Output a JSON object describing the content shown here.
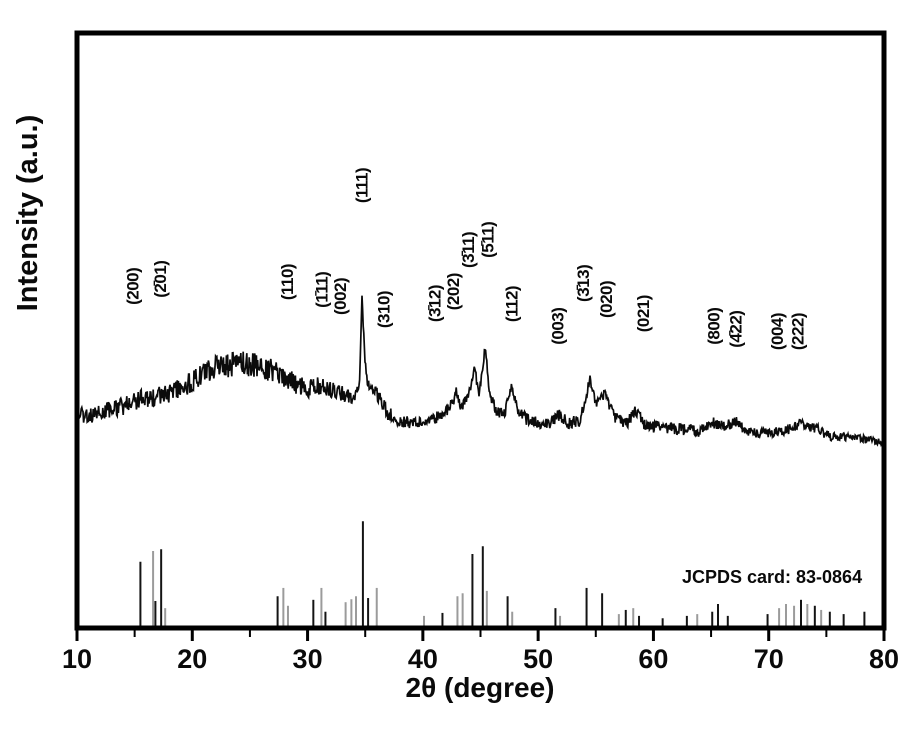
{
  "figure": {
    "y_axis_label": "Intensity (a.u.)",
    "x_axis_label": "2θ (degree)",
    "annotation": "JCPDS card: 83-0864"
  },
  "chart_data": {
    "type": "line",
    "title": "",
    "xlabel": "2θ (degree)",
    "ylabel": "Intensity (a.u.)",
    "x_range": [
      10,
      80
    ],
    "y_units": "arbitrary units, 0 = x-axis baseline, 100 = top of frame",
    "x_major_ticks": [
      10,
      20,
      30,
      40,
      50,
      60,
      70,
      80
    ],
    "x_minor_ticks": [
      15,
      25,
      35,
      45,
      55,
      65,
      75
    ],
    "grid": false,
    "legend": "none",
    "colors": {
      "trace": "#0b0b0b",
      "stick_black": "#141414",
      "stick_gray": "#9b9b9b",
      "frame": "#000000"
    },
    "series": [
      {
        "name": "measured XRD pattern (noisy trace)",
        "type": "noisy-line",
        "anchors": [
          [
            10,
            36.1,
            1.3
          ],
          [
            11,
            35.6,
            1.3
          ],
          [
            12,
            36.1,
            1.3
          ],
          [
            13,
            36.8,
            1.5
          ],
          [
            14,
            37.3,
            1.5
          ],
          [
            15,
            38.0,
            1.5
          ],
          [
            15.6,
            38.8,
            1.6
          ],
          [
            16.3,
            38.3,
            1.5
          ],
          [
            17.2,
            39.3,
            1.6
          ],
          [
            18,
            39.3,
            1.6
          ],
          [
            19,
            40.2,
            1.8
          ],
          [
            20,
            41.3,
            2.0
          ],
          [
            21,
            42.5,
            2.0
          ],
          [
            22,
            43.5,
            2.2
          ],
          [
            23,
            44.2,
            2.2
          ],
          [
            24,
            44.5,
            2.2
          ],
          [
            25,
            44.4,
            2.2
          ],
          [
            26,
            43.9,
            2.0
          ],
          [
            27,
            43.2,
            2.0
          ],
          [
            28,
            42.2,
            1.8
          ],
          [
            29,
            41.0,
            1.7
          ],
          [
            30,
            40.2,
            1.6
          ],
          [
            30.8,
            40.7,
            1.5
          ],
          [
            31.6,
            40.2,
            1.5
          ],
          [
            32.4,
            40.0,
            1.4
          ],
          [
            33.2,
            39.3,
            1.3
          ],
          [
            34.0,
            38.8,
            1.2
          ],
          [
            34.5,
            40.3,
            0.8
          ],
          [
            34.72,
            55.5,
            0.5
          ],
          [
            34.95,
            45.9,
            0.7
          ],
          [
            35.2,
            41.2,
            1.0
          ],
          [
            35.7,
            40.5,
            1.2
          ],
          [
            36.3,
            38.3,
            1.2
          ],
          [
            37,
            36.0,
            1.2
          ],
          [
            38,
            34.8,
            1.0
          ],
          [
            39,
            34.5,
            1.0
          ],
          [
            40,
            34.6,
            1.0
          ],
          [
            41,
            35.1,
            1.0
          ],
          [
            41.9,
            36.3,
            1.0
          ],
          [
            42.6,
            37.8,
            1.0
          ],
          [
            42.9,
            39.7,
            0.8
          ],
          [
            43.3,
            37.1,
            0.8
          ],
          [
            43.9,
            38.5,
            0.8
          ],
          [
            44.5,
            44.0,
            0.7
          ],
          [
            44.85,
            38.8,
            0.8
          ],
          [
            45.4,
            47.2,
            0.7
          ],
          [
            45.8,
            39.3,
            0.8
          ],
          [
            46.4,
            36.5,
            1.0
          ],
          [
            47.1,
            36.0,
            1.0
          ],
          [
            47.65,
            40.5,
            0.8
          ],
          [
            48.2,
            36.6,
            1.0
          ],
          [
            49,
            35.1,
            1.0
          ],
          [
            50,
            34.5,
            1.0
          ],
          [
            51,
            34.3,
            1.0
          ],
          [
            51.8,
            35.8,
            1.0
          ],
          [
            52.6,
            34.5,
            1.0
          ],
          [
            53.6,
            34.8,
            1.0
          ],
          [
            54.5,
            41.8,
            0.8
          ],
          [
            55.05,
            37.6,
            0.8
          ],
          [
            55.8,
            39.3,
            0.8
          ],
          [
            56.6,
            35.5,
            1.0
          ],
          [
            57.6,
            34.3,
            1.0
          ],
          [
            58.5,
            36.5,
            1.0
          ],
          [
            59.2,
            34.3,
            1.0
          ],
          [
            60,
            33.8,
            1.0
          ],
          [
            61,
            33.8,
            1.0
          ],
          [
            62,
            33.4,
            1.0
          ],
          [
            63,
            33.4,
            1.0
          ],
          [
            64,
            33.1,
            1.0
          ],
          [
            65.2,
            34.5,
            1.0
          ],
          [
            66,
            33.8,
            1.0
          ],
          [
            67.2,
            34.5,
            1.0
          ],
          [
            68,
            33.1,
            0.8
          ],
          [
            69,
            32.8,
            0.8
          ],
          [
            70,
            32.8,
            0.8
          ],
          [
            71,
            33.1,
            0.8
          ],
          [
            72,
            33.4,
            0.8
          ],
          [
            72.8,
            34.5,
            0.8
          ],
          [
            73.5,
            33.8,
            0.8
          ],
          [
            74.3,
            33.4,
            0.8
          ],
          [
            75,
            32.4,
            0.8
          ],
          [
            76,
            32.1,
            0.8
          ],
          [
            77,
            32.1,
            0.7
          ],
          [
            78,
            31.8,
            0.7
          ],
          [
            79,
            31.6,
            0.7
          ],
          [
            80,
            31.3,
            0.7
          ]
        ]
      },
      {
        "name": "JCPDS card 83-0864 reference stick pattern",
        "type": "sticks",
        "sticks": [
          [
            15.5,
            10.8,
            "k"
          ],
          [
            16.6,
            12.6,
            "g"
          ],
          [
            16.8,
            4.2,
            "k"
          ],
          [
            17.3,
            12.9,
            "k"
          ],
          [
            17.65,
            3.0,
            "g"
          ],
          [
            27.4,
            5.0,
            "k"
          ],
          [
            27.9,
            6.4,
            "g"
          ],
          [
            28.3,
            3.4,
            "g"
          ],
          [
            30.5,
            4.4,
            "k"
          ],
          [
            31.2,
            6.4,
            "g"
          ],
          [
            31.55,
            2.4,
            "k"
          ],
          [
            33.3,
            4.0,
            "g"
          ],
          [
            33.8,
            4.5,
            "g"
          ],
          [
            34.2,
            5.0,
            "g"
          ],
          [
            34.8,
            17.6,
            "k"
          ],
          [
            35.25,
            4.7,
            "k"
          ],
          [
            36.0,
            6.4,
            "g"
          ],
          [
            40.1,
            1.7,
            "g"
          ],
          [
            41.7,
            2.2,
            "k"
          ],
          [
            43.0,
            5.0,
            "g"
          ],
          [
            43.45,
            5.5,
            "g"
          ],
          [
            44.3,
            12.1,
            "k"
          ],
          [
            45.2,
            13.4,
            "k"
          ],
          [
            45.55,
            5.9,
            "g"
          ],
          [
            47.35,
            5.0,
            "k"
          ],
          [
            47.75,
            2.4,
            "g"
          ],
          [
            51.5,
            3.0,
            "k"
          ],
          [
            51.9,
            1.7,
            "g"
          ],
          [
            54.2,
            6.4,
            "k"
          ],
          [
            55.55,
            5.5,
            "k"
          ],
          [
            57.0,
            2.0,
            "g"
          ],
          [
            57.6,
            2.7,
            "k"
          ],
          [
            58.25,
            3.0,
            "g"
          ],
          [
            58.75,
            1.7,
            "k"
          ],
          [
            60.8,
            1.3,
            "k"
          ],
          [
            62.9,
            1.7,
            "k"
          ],
          [
            63.8,
            2.0,
            "g"
          ],
          [
            65.1,
            2.4,
            "k"
          ],
          [
            65.6,
            3.7,
            "k"
          ],
          [
            66.45,
            1.7,
            "k"
          ],
          [
            69.9,
            2.0,
            "k"
          ],
          [
            70.9,
            3.0,
            "g"
          ],
          [
            71.5,
            3.7,
            "g"
          ],
          [
            72.2,
            3.4,
            "g"
          ],
          [
            72.8,
            4.4,
            "k"
          ],
          [
            73.35,
            3.7,
            "g"
          ],
          [
            74.0,
            3.4,
            "k"
          ],
          [
            74.55,
            2.7,
            "g"
          ],
          [
            75.3,
            2.4,
            "k"
          ],
          [
            76.5,
            2.0,
            "k"
          ],
          [
            78.3,
            2.4,
            "k"
          ]
        ]
      }
    ],
    "peak_labels": [
      {
        "text": "(200)",
        "t": 14.8,
        "v": 54.3
      },
      {
        "text": "(2̄01)",
        "t": 17.2,
        "v": 55.5
      },
      {
        "text": "(110)",
        "t": 28.2,
        "v": 55.1
      },
      {
        "text": "(1̄11)",
        "t": 31.2,
        "v": 53.8
      },
      {
        "text": "(002)",
        "t": 32.8,
        "v": 52.6
      },
      {
        "text": "(111)",
        "t": 34.7,
        "v": 71.4
      },
      {
        "text": "(310)",
        "t": 36.6,
        "v": 50.4
      },
      {
        "text": "(3̄12)",
        "t": 41.0,
        "v": 51.4
      },
      {
        "text": "(202)",
        "t": 42.6,
        "v": 53.4
      },
      {
        "text": "(3̄11)",
        "t": 43.9,
        "v": 60.5
      },
      {
        "text": "(5̄11)",
        "t": 45.6,
        "v": 62.2
      },
      {
        "text": "(112)",
        "t": 47.7,
        "v": 51.4
      },
      {
        "text": "(003)",
        "t": 51.7,
        "v": 47.6
      },
      {
        "text": "(3̄13)",
        "t": 53.9,
        "v": 54.8
      },
      {
        "text": "(020)",
        "t": 55.9,
        "v": 52.1
      },
      {
        "text": "(021)",
        "t": 59.1,
        "v": 49.7
      },
      {
        "text": "(800)",
        "t": 65.2,
        "v": 47.6
      },
      {
        "text": "(4̄22)",
        "t": 67.1,
        "v": 47.1
      },
      {
        "text": "(004)",
        "t": 70.7,
        "v": 46.7
      },
      {
        "text": "(222)",
        "t": 72.5,
        "v": 46.7
      }
    ],
    "annotation": {
      "text": "JCPDS card: 83-0864",
      "t_end": 78.1,
      "v": 7.6
    }
  }
}
